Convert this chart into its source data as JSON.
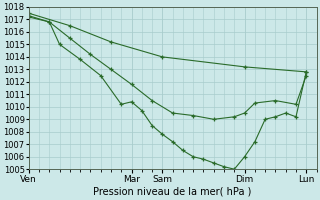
{
  "xlabel": "Pression niveau de la mer( hPa )",
  "background_color": "#cce8e8",
  "grid_color": "#a8cccc",
  "line_color": "#2a6b2a",
  "ylim": [
    1005,
    1018
  ],
  "xlim": [
    0,
    28
  ],
  "yticks": [
    1005,
    1006,
    1007,
    1008,
    1009,
    1010,
    1011,
    1012,
    1013,
    1014,
    1015,
    1016,
    1017,
    1018
  ],
  "xtick_labels": [
    "Ven",
    "Mar",
    "Sam",
    "Dim",
    "Lun"
  ],
  "xtick_positions": [
    0,
    10,
    13,
    21,
    27
  ],
  "series1_x": [
    0,
    4,
    8,
    13,
    21,
    27
  ],
  "series1_y": [
    1017.5,
    1016.5,
    1015.2,
    1014.0,
    1013.2,
    1012.8
  ],
  "series2_x": [
    0,
    2,
    4,
    6,
    8,
    10,
    12,
    14,
    16,
    18,
    20,
    21,
    22,
    24,
    26,
    27
  ],
  "series2_y": [
    1017.3,
    1016.8,
    1015.5,
    1014.2,
    1013.0,
    1011.8,
    1010.5,
    1009.5,
    1009.3,
    1009.0,
    1009.2,
    1009.5,
    1010.3,
    1010.5,
    1010.2,
    1012.5
  ],
  "series3_x": [
    0,
    2,
    3,
    5,
    7,
    9,
    10,
    11,
    12,
    13,
    14,
    15,
    16,
    17,
    18,
    19,
    20,
    21,
    22,
    23,
    24,
    25,
    26,
    27
  ],
  "series3_y": [
    1017.2,
    1016.8,
    1015.0,
    1013.8,
    1012.5,
    1010.2,
    1010.4,
    1009.7,
    1008.5,
    1007.8,
    1007.2,
    1006.5,
    1006.0,
    1005.8,
    1005.5,
    1005.2,
    1005.0,
    1006.0,
    1007.2,
    1009.0,
    1009.2,
    1009.5,
    1009.2,
    1012.8
  ]
}
